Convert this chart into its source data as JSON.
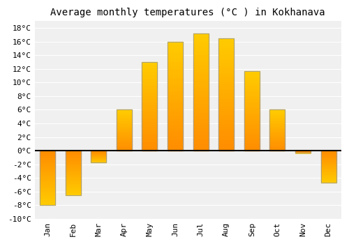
{
  "title": "Average monthly temperatures (°C ) in Kokhanava",
  "months": [
    "Jan",
    "Feb",
    "Mar",
    "Apr",
    "May",
    "Jun",
    "Jul",
    "Aug",
    "Sep",
    "Oct",
    "Nov",
    "Dec"
  ],
  "values": [
    -8,
    -6.5,
    -1.7,
    6,
    13,
    16,
    17.2,
    16.5,
    11.7,
    6,
    -0.3,
    -4.7
  ],
  "bar_color_top": "#FFB700",
  "bar_color_bottom": "#FF8C00",
  "bar_edge_color": "#999999",
  "ylim": [
    -10,
    19
  ],
  "yticks": [
    -10,
    -8,
    -6,
    -4,
    -2,
    0,
    2,
    4,
    6,
    8,
    10,
    12,
    14,
    16,
    18
  ],
  "ytick_labels": [
    "-10°C",
    "-8°C",
    "-6°C",
    "-4°C",
    "-2°C",
    "0°C",
    "2°C",
    "4°C",
    "6°C",
    "8°C",
    "10°C",
    "12°C",
    "14°C",
    "16°C",
    "18°C"
  ],
  "background_color": "#ffffff",
  "plot_bg_color": "#f0f0f0",
  "grid_color": "#ffffff",
  "title_fontsize": 10,
  "tick_fontsize": 8,
  "bar_width": 0.6
}
